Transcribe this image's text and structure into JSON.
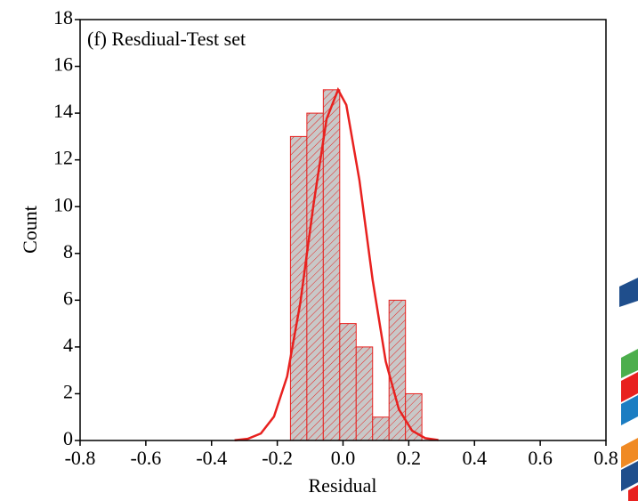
{
  "chart_data": {
    "type": "histogram",
    "annotation": "(f) Resdiual-Test set",
    "x_label": "Residual",
    "y_label": "Count",
    "bins": [
      -0.16,
      -0.11,
      -0.06,
      -0.01,
      0.04,
      0.09,
      0.14,
      0.19,
      0.24
    ],
    "values": [
      13,
      14,
      15,
      5,
      4,
      1,
      6,
      2
    ],
    "color": "#c8c8c8",
    "edge_color": "#e8211f",
    "curve": {
      "type": "line",
      "color": "#e8211f",
      "x": [
        -0.33,
        -0.29,
        -0.25,
        -0.21,
        -0.17,
        -0.13,
        -0.09,
        -0.05,
        -0.015,
        0.01,
        0.05,
        0.09,
        0.13,
        0.17,
        0.21,
        0.25,
        0.29
      ],
      "values": [
        0.01,
        0.07,
        0.3,
        1.02,
        2.74,
        5.88,
        10.07,
        13.75,
        15,
        14.35,
        11.12,
        6.87,
        3.38,
        1.33,
        0.42,
        0.1,
        0.02
      ]
    },
    "xlim": [
      -0.8,
      0.8
    ],
    "xticks": [
      -0.8,
      -0.6,
      -0.4,
      -0.2,
      {
        "value": 0,
        "label": "0.0"
      },
      0.2,
      0.4,
      0.6,
      0.8
    ],
    "ylim": [
      0,
      18
    ],
    "yticks": [
      0,
      2,
      4,
      6,
      8,
      10,
      12,
      14,
      16,
      18
    ]
  }
}
